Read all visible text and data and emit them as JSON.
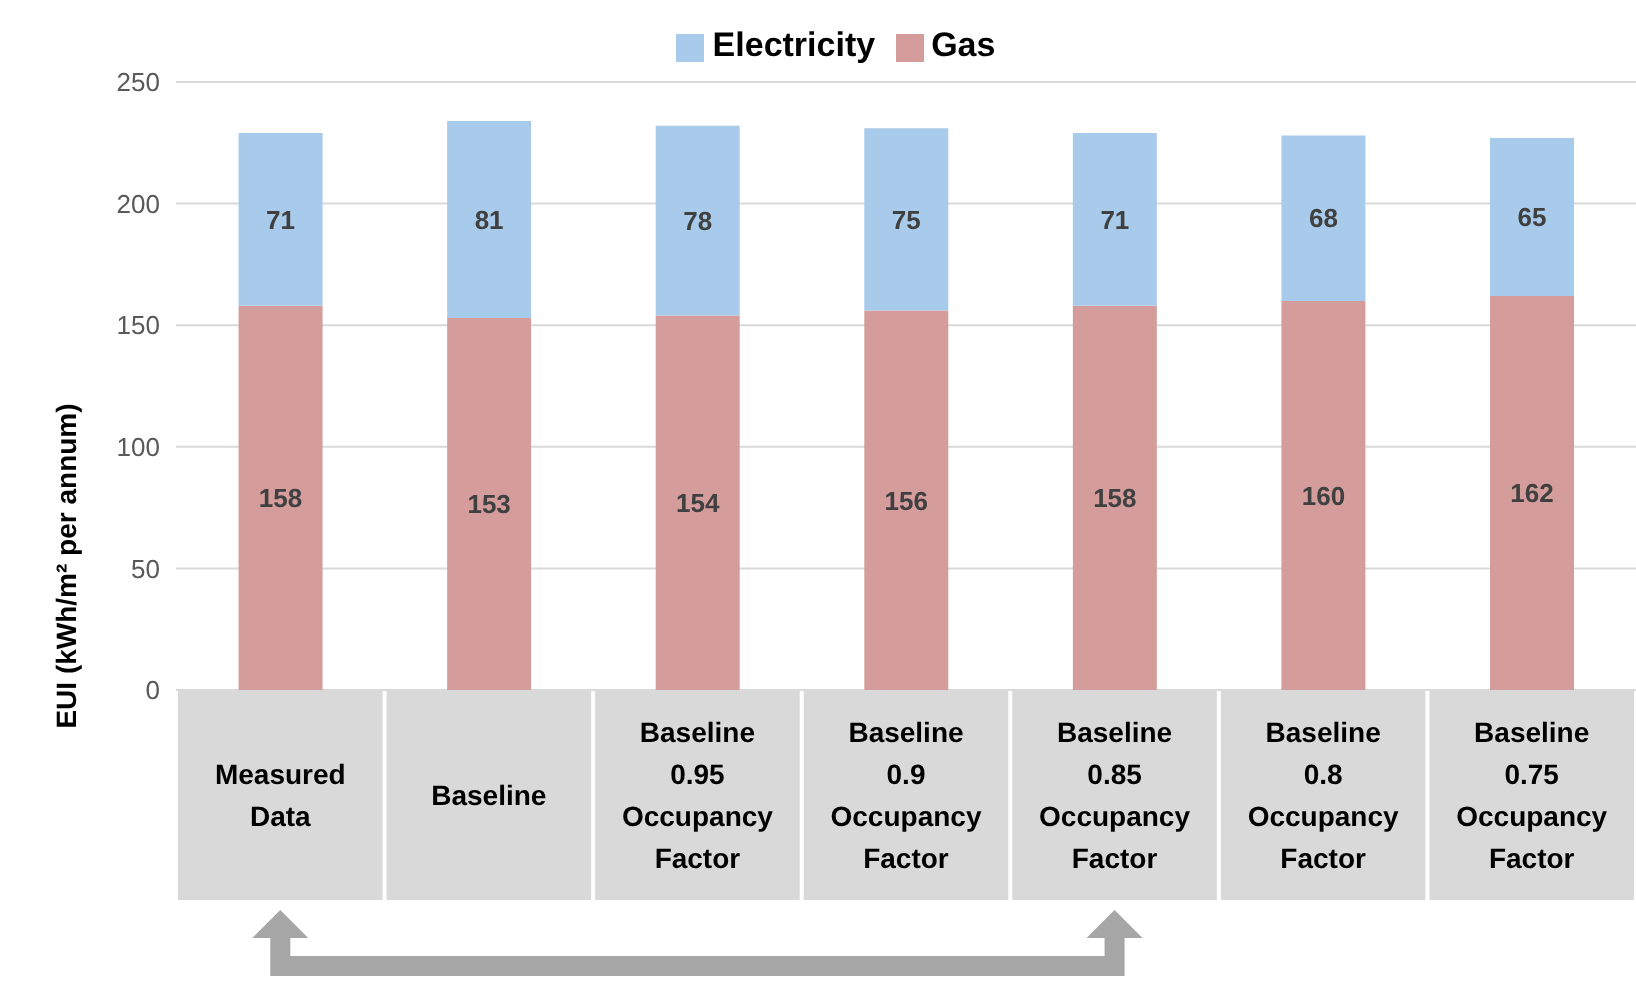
{
  "chart_data": {
    "type": "bar",
    "stacked": true,
    "ylabel": "EUI (kWh/m² per annum)",
    "categories": [
      "Measured Data",
      "Baseline",
      "Baseline 0.95 Occupancy Factor",
      "Baseline 0.9 Occupancy Factor",
      "Baseline 0.85 Occupancy Factor",
      "Baseline 0.8 Occupancy Factor",
      "Baseline 0.75 Occupancy Factor"
    ],
    "series": [
      {
        "name": "Gas",
        "color": "#d59c9c",
        "values": [
          158,
          153,
          154,
          156,
          158,
          160,
          162
        ]
      },
      {
        "name": "Electricity",
        "color": "#a9cbeb",
        "values": [
          71,
          81,
          78,
          75,
          71,
          68,
          65
        ]
      }
    ],
    "ylim": [
      0,
      250
    ],
    "yticks": [
      0,
      50,
      100,
      150,
      200,
      250
    ],
    "grid": "y",
    "legend": "top",
    "data_labels": true
  }
}
